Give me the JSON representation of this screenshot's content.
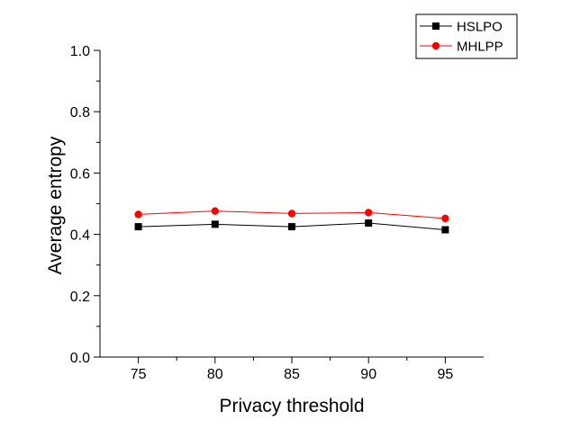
{
  "chart_data": {
    "type": "line",
    "title": "",
    "xlabel": "Privacy threshold",
    "ylabel": "Average entropy",
    "x": [
      75,
      80,
      85,
      90,
      95
    ],
    "xticks": [
      "75",
      "80",
      "85",
      "90",
      "95"
    ],
    "xlim": [
      72.5,
      97.5
    ],
    "ylim": [
      0.0,
      1.0
    ],
    "yticks": [
      "0.0",
      "0.2",
      "0.4",
      "0.6",
      "0.8",
      "1.0"
    ],
    "grid": false,
    "legend_position": "top-right",
    "series": [
      {
        "name": "HSLPO",
        "values": [
          0.425,
          0.433,
          0.425,
          0.437,
          0.415
        ],
        "color": "#000000",
        "marker": "square"
      },
      {
        "name": "MHLPP",
        "values": [
          0.465,
          0.476,
          0.468,
          0.471,
          0.452
        ],
        "color": "#ff0000",
        "marker": "circle"
      }
    ]
  }
}
